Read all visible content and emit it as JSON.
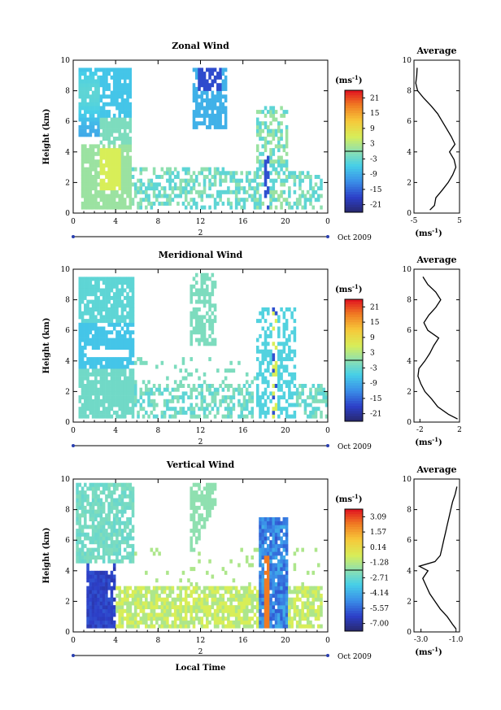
{
  "chart_data": [
    {
      "type": "heatmap",
      "title": "Zonal Wind",
      "ylabel": "Height (km)",
      "xlim": [
        0,
        24
      ],
      "ylim": [
        0,
        10
      ],
      "x_ticks": [
        "0",
        "4",
        "8",
        "12",
        "16",
        "20",
        "0"
      ],
      "y_ticks": [
        "0",
        "2",
        "4",
        "6",
        "8",
        "10"
      ],
      "date_label": "Oct 2009",
      "day_label": "2",
      "colorbar": {
        "unit_label": "(ms",
        "unit_exp": "-1",
        "unit_close": ")",
        "tick_labels": [
          "21",
          "15",
          "9",
          "3",
          "-3",
          "-9",
          "-15",
          "-21"
        ],
        "range": [
          -24,
          24
        ]
      },
      "profile": {
        "title": "Average",
        "xlabel": "(ms",
        "xlabel_exp": "-1",
        "xlabel_close": ")",
        "x_ticks": [
          "-5",
          "5"
        ],
        "y_ticks": [
          "0",
          "2",
          "4",
          "6",
          "8",
          "10"
        ],
        "xlim": [
          -5,
          5
        ],
        "heights_km": [
          0.2,
          0.5,
          1.0,
          1.5,
          2.0,
          2.5,
          3.0,
          3.5,
          4.0,
          4.5,
          5.0,
          5.5,
          6.0,
          6.5,
          7.0,
          7.5,
          8.0,
          8.5,
          9.0,
          9.5
        ],
        "values": [
          -1.5,
          -0.5,
          -0.2,
          1.2,
          2.5,
          3.5,
          4.2,
          3.8,
          2.8,
          4.0,
          3.2,
          2.2,
          1.2,
          0.2,
          -1.2,
          -2.8,
          -4.2,
          -4.6,
          -4.4,
          -4.3
        ]
      },
      "colors": {
        "low": "#2c2c8c",
        "mid": "#5bd4c8",
        "high": "#e8101e"
      }
    },
    {
      "type": "heatmap",
      "title": "Meridional Wind",
      "ylabel": "Height (km)",
      "xlim": [
        0,
        24
      ],
      "ylim": [
        0,
        10
      ],
      "x_ticks": [
        "0",
        "4",
        "8",
        "12",
        "16",
        "20",
        "0"
      ],
      "y_ticks": [
        "0",
        "2",
        "4",
        "6",
        "8",
        "10"
      ],
      "date_label": "Oct 2009",
      "day_label": "2",
      "colorbar": {
        "unit_label": "(ms",
        "unit_exp": "-1",
        "unit_close": ")",
        "tick_labels": [
          "21",
          "15",
          "9",
          "3",
          "-3",
          "-9",
          "-15",
          "-21"
        ],
        "range": [
          -24,
          24
        ]
      },
      "profile": {
        "title": "Average",
        "xlabel": "(ms",
        "xlabel_exp": "-1",
        "xlabel_close": ")",
        "x_ticks": [
          "-2",
          "2"
        ],
        "y_ticks": [
          "0",
          "2",
          "4",
          "6",
          "8",
          "10"
        ],
        "xlim": [
          -2.6,
          2.0
        ],
        "heights_km": [
          0.2,
          0.5,
          1.0,
          1.5,
          2.0,
          2.5,
          3.0,
          3.5,
          4.0,
          4.5,
          5.0,
          5.5,
          6.0,
          6.5,
          7.0,
          7.5,
          8.0,
          8.5,
          9.0,
          9.5
        ],
        "values": [
          1.8,
          0.9,
          -0.2,
          -0.8,
          -1.5,
          -1.9,
          -2.2,
          -2.1,
          -1.5,
          -1.0,
          -0.6,
          -0.1,
          -1.2,
          -1.6,
          -1.1,
          -0.4,
          0.1,
          -0.4,
          -1.2,
          -1.7
        ]
      },
      "colors": {
        "low": "#2c2c8c",
        "mid": "#5bd4c8",
        "high": "#e8101e"
      }
    },
    {
      "type": "heatmap",
      "title": "Vertical Wind",
      "ylabel": "Height (km)",
      "xlabel": "Local Time",
      "xlim": [
        0,
        24
      ],
      "ylim": [
        0,
        10
      ],
      "x_ticks": [
        "0",
        "4",
        "8",
        "12",
        "16",
        "20",
        "0"
      ],
      "y_ticks": [
        "0",
        "2",
        "4",
        "6",
        "8",
        "10"
      ],
      "date_label": "Oct 2009",
      "day_label": "2",
      "colorbar": {
        "unit_label": "(ms",
        "unit_exp": "-1",
        "unit_close": ")",
        "tick_labels": [
          "3.09",
          "1.57",
          "0.14",
          "-1.28",
          "-2.71",
          "-4.14",
          "-5.57",
          "-7.00"
        ],
        "range": [
          -7.7,
          3.8
        ]
      },
      "profile": {
        "title": "Average",
        "xlabel": "(ms",
        "xlabel_exp": "-1",
        "xlabel_close": ")",
        "x_ticks": [
          "-3.0",
          "-1.0"
        ],
        "y_ticks": [
          "0",
          "2",
          "4",
          "6",
          "8",
          "10"
        ],
        "xlim": [
          -3.4,
          -0.8
        ],
        "heights_km": [
          0.2,
          0.5,
          1.0,
          1.5,
          2.0,
          2.5,
          3.0,
          3.5,
          4.0,
          4.3,
          4.6,
          5.0,
          5.5,
          6.0,
          6.5,
          7.0,
          7.5,
          8.0,
          8.5,
          9.0,
          9.5
        ],
        "values": [
          -1.0,
          -1.2,
          -1.5,
          -1.9,
          -2.2,
          -2.5,
          -2.7,
          -2.9,
          -2.6,
          -3.1,
          -2.2,
          -1.9,
          -1.8,
          -1.7,
          -1.6,
          -1.5,
          -1.4,
          -1.3,
          -1.2,
          -1.05,
          -0.95
        ]
      },
      "colors": {
        "low": "#2c2c8c",
        "mid": "#5bd4c8",
        "high": "#e8101e"
      }
    }
  ]
}
